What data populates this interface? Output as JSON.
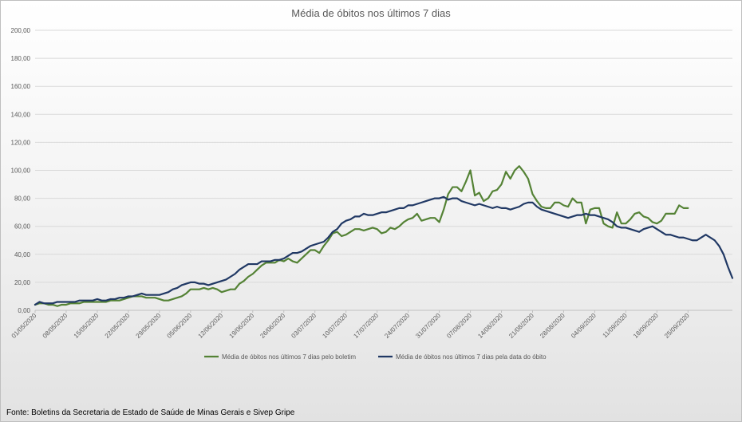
{
  "chart_data": {
    "type": "line",
    "title": "Média de óbitos nos últimos 7 dias",
    "xlabel": "",
    "ylabel": "",
    "ylim": [
      0,
      200
    ],
    "yticks": [
      "0,00",
      "20,00",
      "40,00",
      "60,00",
      "80,00",
      "100,00",
      "120,00",
      "140,00",
      "160,00",
      "180,00",
      "200,00"
    ],
    "x_start": "01/05/2020",
    "xtick_labels": [
      "01/05/2020",
      "08/05/2020",
      "15/05/2020",
      "22/05/2020",
      "29/05/2020",
      "05/06/2020",
      "12/06/2020",
      "19/06/2020",
      "26/06/2020",
      "03/07/2020",
      "10/07/2020",
      "17/07/2020",
      "24/07/2020",
      "31/07/2020",
      "07/08/2020",
      "14/08/2020",
      "21/08/2020",
      "28/08/2020",
      "04/09/2020",
      "11/09/2020",
      "18/09/2020",
      "25/09/2020"
    ],
    "grid": true,
    "legend_position": "bottom",
    "series": [
      {
        "name": "Média de óbitos nos últimos 7 dias pelo boletim",
        "color": "#548235",
        "values": [
          4,
          5,
          5,
          4,
          4,
          3,
          4,
          4,
          5,
          5,
          5,
          6,
          6,
          6,
          6,
          6,
          6,
          7,
          7,
          7,
          8,
          9,
          10,
          10,
          10,
          9,
          9,
          9,
          8,
          7,
          7,
          8,
          9,
          10,
          12,
          15,
          15,
          15,
          16,
          15,
          16,
          15,
          13,
          14,
          15,
          15,
          19,
          21,
          24,
          26,
          29,
          32,
          34,
          34,
          34,
          36,
          35,
          37,
          35,
          34,
          37,
          40,
          43,
          43,
          41,
          46,
          50,
          55,
          56,
          53,
          54,
          56,
          58,
          58,
          57,
          58,
          59,
          58,
          55,
          56,
          59,
          58,
          60,
          63,
          65,
          66,
          69,
          64,
          65,
          66,
          66,
          63,
          72,
          83,
          88,
          88,
          85,
          92,
          100,
          82,
          84,
          78,
          80,
          85,
          86,
          90,
          99,
          94,
          100,
          103,
          99,
          94,
          83,
          78,
          74,
          73,
          73,
          77,
          77,
          75,
          74,
          80,
          77,
          77,
          62,
          72,
          73,
          73,
          62,
          60,
          59,
          70,
          62,
          62,
          65,
          69,
          70,
          67,
          66,
          63,
          62,
          64,
          69,
          69,
          69,
          75,
          73,
          73
        ]
      },
      {
        "name": "Média de óbitos nos últimos 7 dias pela data do óbito",
        "color": "#203864",
        "values": [
          4,
          6,
          5,
          5,
          5,
          6,
          6,
          6,
          6,
          6,
          7,
          7,
          7,
          7,
          8,
          7,
          7,
          8,
          8,
          9,
          9,
          10,
          10,
          11,
          12,
          11,
          11,
          11,
          11,
          12,
          13,
          15,
          16,
          18,
          19,
          20,
          20,
          19,
          19,
          18,
          19,
          20,
          21,
          22,
          24,
          26,
          29,
          31,
          33,
          33,
          33,
          35,
          35,
          35,
          36,
          36,
          37,
          39,
          41,
          41,
          42,
          44,
          46,
          47,
          48,
          49,
          52,
          56,
          58,
          62,
          64,
          65,
          67,
          67,
          69,
          68,
          68,
          69,
          70,
          70,
          71,
          72,
          73,
          73,
          75,
          75,
          76,
          77,
          78,
          79,
          80,
          80,
          81,
          79,
          80,
          80,
          78,
          77,
          76,
          75,
          76,
          75,
          74,
          73,
          74,
          73,
          73,
          72,
          73,
          74,
          76,
          77,
          77,
          74,
          72,
          71,
          70,
          69,
          68,
          67,
          66,
          67,
          68,
          68,
          69,
          68,
          68,
          67,
          66,
          65,
          63,
          60,
          59,
          59,
          58,
          57,
          56,
          58,
          59,
          60,
          58,
          56,
          54,
          54,
          53,
          52,
          52,
          51,
          50,
          50,
          52,
          54,
          52,
          50,
          46,
          40,
          31,
          23
        ]
      }
    ]
  },
  "source_note": "Fonte: Boletins da Secretaria de Estado de Saúde de Minas Gerais e Sivep Gripe"
}
